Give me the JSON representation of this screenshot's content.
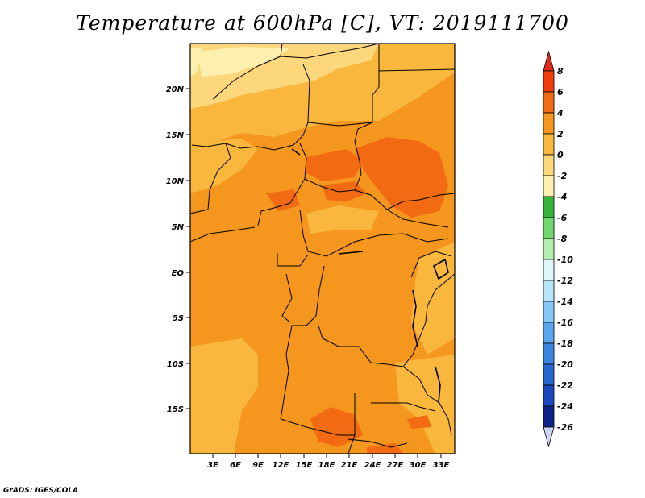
{
  "title": "Temperature at 600hPa [C], VT: 2019111700",
  "credit": "GrADS: IGES/COLA",
  "map": {
    "lat_labels": [
      "20N",
      "15N",
      "10N",
      "5N",
      "EQ",
      "5S",
      "10S",
      "15S"
    ],
    "lon_labels": [
      "3E",
      "6E",
      "9E",
      "12E",
      "15E",
      "18E",
      "21E",
      "24E",
      "27E",
      "30E",
      "33E"
    ]
  },
  "colorbar": {
    "labels": [
      "8",
      "6",
      "4",
      "2",
      "0",
      "-2",
      "-4",
      "-6",
      "-8",
      "-10",
      "-12",
      "-14",
      "-16",
      "-18",
      "-20",
      "-22",
      "-24",
      "-26"
    ],
    "colors": {
      "gt8": "#e02a1a",
      "6-8": "#f23c0e",
      "4-6": "#f26a12",
      "2-4": "#f5961e",
      "0-2": "#f9b73e",
      "-2-0": "#fdd77c",
      "-4--2": "#fff0b0",
      "-6--4": "#36b43c",
      "-8--6": "#70d66e",
      "-10--8": "#b4eeac",
      "-12--10": "#dff6f8",
      "-14--12": "#b8e4fa",
      "-16--14": "#86c8f6",
      "-18--16": "#5aa6ee",
      "-20--18": "#3c86e2",
      "-22--20": "#2866d2",
      "-24--22": "#1a48bc",
      "-26--24": "#0e2488",
      "lt-26": "#cdd4f4"
    }
  }
}
